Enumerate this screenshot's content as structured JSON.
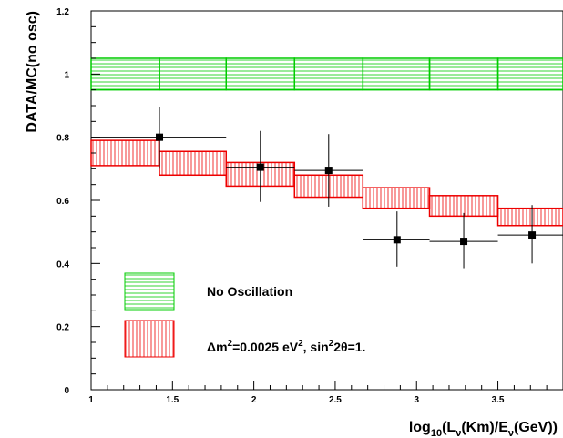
{
  "chart_data": {
    "type": "scatter",
    "xlabel_parts": {
      "pre": "log",
      "sub1": "10",
      "mid1": "(L",
      "sub2": "ν",
      "mid2": "(Km)/E",
      "sub3": "ν",
      "post": "(GeV))"
    },
    "ylabel": "DATA/MC(no osc)",
    "xlim": [
      1.0,
      3.9
    ],
    "ylim": [
      0.0,
      1.2
    ],
    "x_ticks": [
      1,
      1.5,
      2,
      2.5,
      3,
      3.5
    ],
    "x_tick_labels": [
      "1",
      "1.5",
      "2",
      "2.5",
      "3",
      "3.5"
    ],
    "y_ticks": [
      0,
      0.2,
      0.4,
      0.6,
      0.8,
      1.0,
      1.2
    ],
    "y_tick_labels": [
      "0",
      "0.2",
      "0.4",
      "0.6",
      "0.8",
      "1",
      "1.2"
    ],
    "bin_edges": [
      1.0,
      1.42,
      1.83,
      2.25,
      2.67,
      3.08,
      3.5,
      3.9
    ],
    "no_osc_band": [
      {
        "low": 0.95,
        "high": 1.05
      },
      {
        "low": 0.95,
        "high": 1.05
      },
      {
        "low": 0.95,
        "high": 1.05
      },
      {
        "low": 0.95,
        "high": 1.05
      },
      {
        "low": 0.95,
        "high": 1.05
      },
      {
        "low": 0.95,
        "high": 1.05
      },
      {
        "low": 0.95,
        "high": 1.05
      }
    ],
    "osc_band": [
      {
        "low": 0.71,
        "high": 0.79
      },
      {
        "low": 0.68,
        "high": 0.755
      },
      {
        "low": 0.645,
        "high": 0.72
      },
      {
        "low": 0.61,
        "high": 0.68
      },
      {
        "low": 0.575,
        "high": 0.64
      },
      {
        "low": 0.55,
        "high": 0.615
      },
      {
        "low": 0.52,
        "high": 0.575
      }
    ],
    "data_points": [
      {
        "x": 1.42,
        "y": 0.8,
        "xlow": 1.0,
        "xhigh": 1.83,
        "ylow": 0.7,
        "yhigh": 0.895
      },
      {
        "x": 2.04,
        "y": 0.705,
        "xlow": 1.83,
        "xhigh": 2.25,
        "ylow": 0.595,
        "yhigh": 0.82
      },
      {
        "x": 2.46,
        "y": 0.695,
        "xlow": 2.25,
        "xhigh": 2.67,
        "ylow": 0.58,
        "yhigh": 0.81
      },
      {
        "x": 2.88,
        "y": 0.475,
        "xlow": 2.67,
        "xhigh": 3.08,
        "ylow": 0.39,
        "yhigh": 0.565
      },
      {
        "x": 3.29,
        "y": 0.47,
        "xlow": 3.08,
        "xhigh": 3.5,
        "ylow": 0.385,
        "yhigh": 0.56
      },
      {
        "x": 3.71,
        "y": 0.49,
        "xlow": 3.5,
        "xhigh": 3.9,
        "ylow": 0.4,
        "yhigh": 0.585
      }
    ],
    "legend": {
      "no_osc": "No Oscillation",
      "osc_parts": {
        "a": "Δm",
        "sup1": "2",
        "b": "=0.0025 eV",
        "sup2": "2",
        "c": ", sin",
        "sup3": "2",
        "d": "2θ=1."
      }
    },
    "colors": {
      "no_osc": "#00cc00",
      "osc": "#ee0000",
      "data": "#000000"
    }
  }
}
